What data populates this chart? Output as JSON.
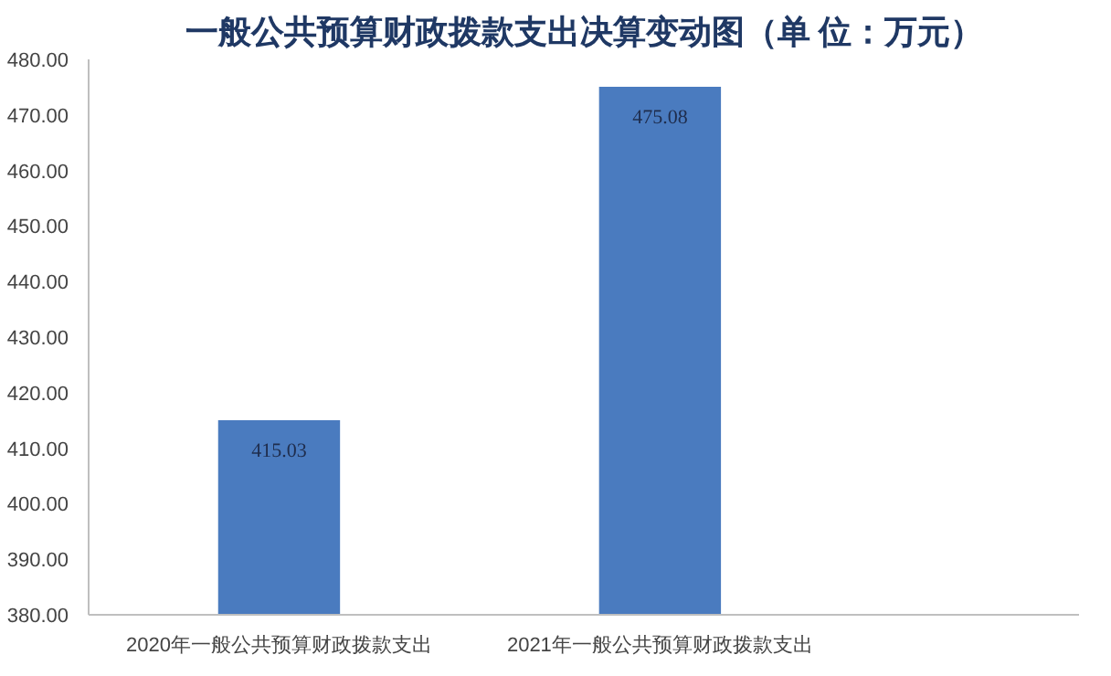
{
  "chart_data": {
    "type": "bar",
    "title": "一般公共预算财政拨款支出决算变动图（单 位：万元）",
    "categories": [
      "2020年一般公共预算财政拨款支出",
      "2021年一般公共预算财政拨款支出"
    ],
    "values": [
      415.03,
      475.08
    ],
    "color": "#4a7bbf",
    "data_labels": true,
    "grid": false,
    "ylim": [
      380,
      480
    ],
    "yticks": [
      {
        "value": 380,
        "label": "380.00"
      },
      {
        "value": 390,
        "label": "390.00"
      },
      {
        "value": 400,
        "label": "400.00"
      },
      {
        "value": 410,
        "label": "410.00"
      },
      {
        "value": 420,
        "label": "420.00"
      },
      {
        "value": 430,
        "label": "430.00"
      },
      {
        "value": 440,
        "label": "440.00"
      },
      {
        "value": 450,
        "label": "450.00"
      },
      {
        "value": 460,
        "label": "460.00"
      },
      {
        "value": 470,
        "label": "470.00"
      },
      {
        "value": 480,
        "label": "480.00"
      }
    ]
  }
}
